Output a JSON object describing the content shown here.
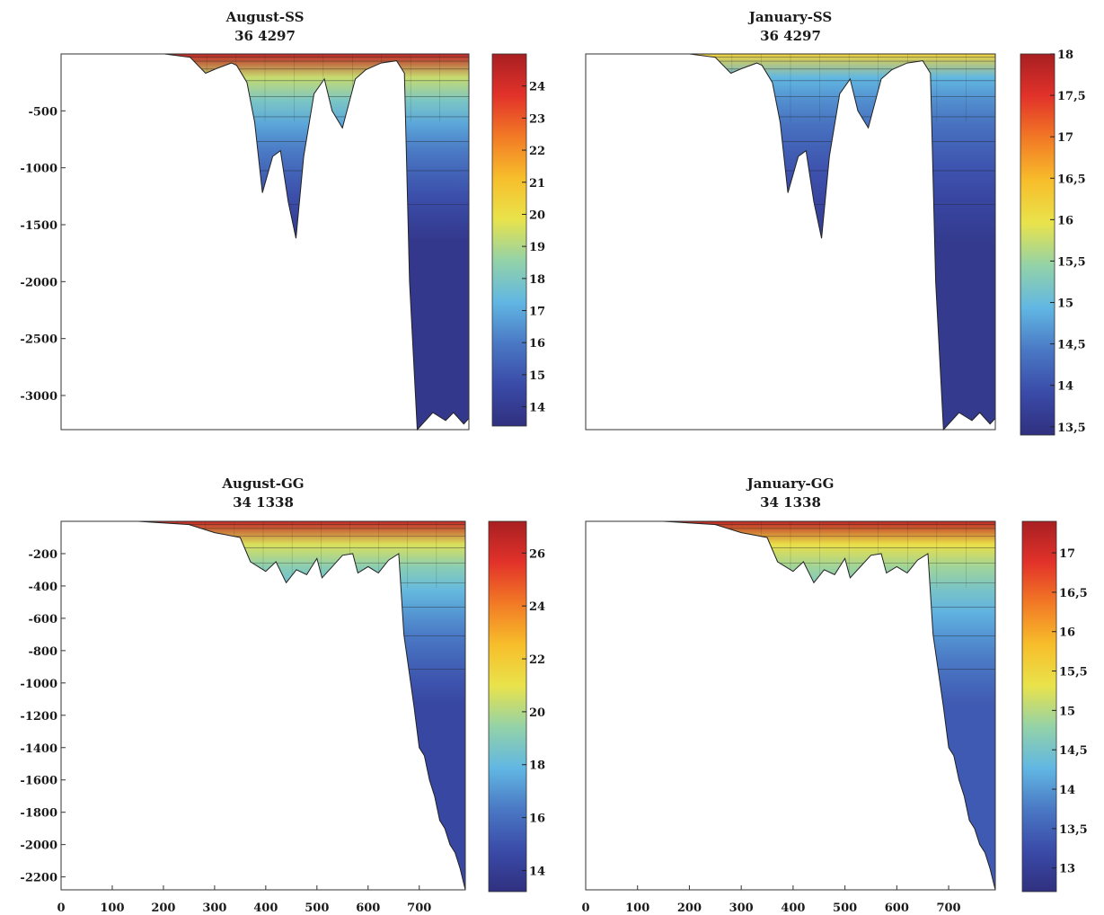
{
  "chart_data": [
    {
      "type": "heatmap",
      "title": "August-SS",
      "subtitle": "36 4297",
      "xlabel": "",
      "ylabel": "",
      "xlim": [
        0,
        790
      ],
      "ylim": [
        -3300,
        0
      ],
      "yticks": [
        -500,
        -1000,
        -1500,
        -2000,
        -2500,
        -3000
      ],
      "xticks": [],
      "colorbar": {
        "range": [
          13.4,
          25
        ],
        "ticks": [
          14,
          15,
          16,
          17,
          18,
          19,
          20,
          21,
          22,
          23,
          24
        ],
        "tick_labels": [
          "14",
          "15",
          "16",
          "17",
          "18",
          "19",
          "20",
          "21",
          "22",
          "23",
          "24"
        ]
      },
      "bottom_profile": {
        "x": [
          0,
          200,
          250,
          280,
          300,
          330,
          340,
          360,
          375,
          390,
          410,
          425,
          440,
          455,
          470,
          490,
          510,
          525,
          545,
          570,
          590,
          620,
          650,
          665,
          675,
          690,
          700,
          720,
          745,
          760,
          780,
          790
        ],
        "depth": [
          0,
          0,
          -30,
          -170,
          -130,
          -80,
          -100,
          -250,
          -600,
          -1220,
          -900,
          -850,
          -1300,
          -1620,
          -900,
          -350,
          -220,
          -500,
          -650,
          -220,
          -140,
          -80,
          -60,
          -170,
          -2000,
          -3300,
          -3250,
          -3150,
          -3220,
          -3150,
          -3250,
          -3200
        ]
      },
      "surface_value": 24.5,
      "deep_value": 13.8
    },
    {
      "type": "heatmap",
      "title": "January-SS",
      "subtitle": "36 4297",
      "xlabel": "",
      "ylabel": "",
      "xlim": [
        0,
        790
      ],
      "ylim": [
        -3300,
        0
      ],
      "yticks": [],
      "xticks": [],
      "colorbar": {
        "range": [
          13.4,
          18
        ],
        "ticks": [
          13.5,
          14,
          14.5,
          15,
          15.5,
          16,
          16.5,
          17,
          17.5,
          18
        ],
        "tick_labels": [
          "13,5",
          "14",
          "14,5",
          "15",
          "15,5",
          "16",
          "16,5",
          "17",
          "17,5",
          "18"
        ]
      },
      "bottom_profile": {
        "x": [
          0,
          200,
          250,
          280,
          300,
          330,
          340,
          360,
          375,
          390,
          410,
          425,
          440,
          455,
          470,
          490,
          510,
          525,
          545,
          570,
          590,
          620,
          650,
          665,
          675,
          690,
          700,
          720,
          745,
          760,
          780,
          790
        ],
        "depth": [
          0,
          0,
          -30,
          -170,
          -130,
          -80,
          -100,
          -250,
          -600,
          -1220,
          -900,
          -850,
          -1300,
          -1620,
          -900,
          -350,
          -220,
          -500,
          -650,
          -220,
          -140,
          -80,
          -60,
          -170,
          -2000,
          -3300,
          -3250,
          -3150,
          -3220,
          -3150,
          -3250,
          -3200
        ]
      },
      "surface_value": 16.2,
      "deep_value": 13.6
    },
    {
      "type": "heatmap",
      "title": "August-GG",
      "subtitle": "34 1338",
      "xlabel": "",
      "ylabel": "",
      "xlim": [
        0,
        790
      ],
      "ylim": [
        -2280,
        0
      ],
      "yticks": [
        -200,
        -400,
        -600,
        -800,
        -1000,
        -1200,
        -1400,
        -1600,
        -1800,
        -2000,
        -2200
      ],
      "xticks": [
        0,
        100,
        200,
        300,
        400,
        500,
        600,
        700
      ],
      "colorbar": {
        "range": [
          13.2,
          27.2
        ],
        "ticks": [
          14,
          16,
          18,
          20,
          22,
          24,
          26
        ],
        "tick_labels": [
          "14",
          "16",
          "18",
          "20",
          "22",
          "24",
          "26"
        ]
      },
      "bottom_profile": {
        "x": [
          0,
          150,
          250,
          300,
          350,
          370,
          400,
          420,
          440,
          460,
          480,
          500,
          510,
          530,
          550,
          570,
          580,
          600,
          620,
          640,
          660,
          670,
          690,
          700,
          710,
          720,
          730,
          740,
          750,
          760,
          770,
          780,
          790
        ],
        "depth": [
          0,
          0,
          -20,
          -70,
          -100,
          -250,
          -310,
          -250,
          -380,
          -300,
          -330,
          -230,
          -350,
          -280,
          -210,
          -200,
          -320,
          -280,
          -320,
          -240,
          -200,
          -700,
          -1150,
          -1400,
          -1450,
          -1600,
          -1700,
          -1850,
          -1900,
          -2000,
          -2050,
          -2150,
          -2280
        ]
      },
      "surface_value": 26.5,
      "deep_value": 14.5
    },
    {
      "type": "heatmap",
      "title": "January-GG",
      "subtitle": "34 1338",
      "xlabel": "",
      "ylabel": "",
      "xlim": [
        0,
        790
      ],
      "ylim": [
        -2280,
        0
      ],
      "yticks": [],
      "xticks": [
        0,
        100,
        200,
        300,
        400,
        500,
        600,
        700
      ],
      "colorbar": {
        "range": [
          12.7,
          17.4
        ],
        "ticks": [
          13,
          13.5,
          14,
          14.5,
          15,
          15.5,
          16,
          16.5,
          17
        ],
        "tick_labels": [
          "13",
          "13,5",
          "14",
          "14,5",
          "15",
          "15,5",
          "16",
          "16,5",
          "17"
        ]
      },
      "bottom_profile": {
        "x": [
          0,
          150,
          250,
          300,
          350,
          370,
          400,
          420,
          440,
          460,
          480,
          500,
          510,
          530,
          550,
          570,
          580,
          600,
          620,
          640,
          660,
          670,
          690,
          700,
          710,
          720,
          730,
          740,
          750,
          760,
          770,
          780,
          790
        ],
        "depth": [
          0,
          0,
          -20,
          -70,
          -100,
          -250,
          -310,
          -250,
          -380,
          -300,
          -330,
          -230,
          -350,
          -280,
          -210,
          -200,
          -320,
          -280,
          -320,
          -240,
          -200,
          -700,
          -1150,
          -1400,
          -1450,
          -1600,
          -1700,
          -1850,
          -1900,
          -2000,
          -2050,
          -2150,
          -2280
        ]
      },
      "surface_value": 17.2,
      "deep_value": 13.4
    }
  ],
  "colors": {
    "colormap": [
      "#30307f",
      "#3a4ba8",
      "#4a78c4",
      "#61b7e3",
      "#93d2a8",
      "#e9e34b",
      "#f7be2b",
      "#f27a25",
      "#e2322a",
      "#a81f22"
    ],
    "contour": "#1b1b1b",
    "axis": "#333333"
  }
}
